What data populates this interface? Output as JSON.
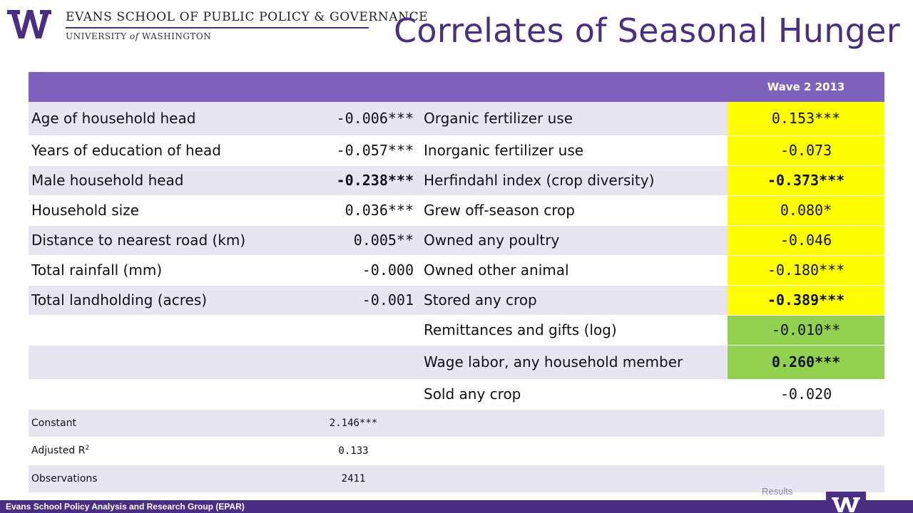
{
  "logo": {
    "line1": "EVANS SCHOOL OF PUBLIC POLICY & GOVERNANCE",
    "line2_a": "UNIVERSITY ",
    "line2_of": "of",
    "line2_b": " WASHINGTON"
  },
  "title": "Correlates of Seasonal Hunger",
  "table": {
    "header": {
      "wave": "Wave 2 2013"
    },
    "rows": [
      {
        "var1": "Age of household head",
        "val1": "-0.006***",
        "var2": "Organic fertilizer use",
        "val2": "0.153***"
      },
      {
        "var1": "Years of education of head",
        "val1": "-0.057***",
        "var2": "Inorganic fertilizer use",
        "val2": "-0.073"
      },
      {
        "var1": "Male household head",
        "val1": "-0.238***",
        "var2": "Herfindahl index (crop diversity)",
        "val2": "-0.373***"
      },
      {
        "var1": "Household size",
        "val1": "0.036***",
        "var2": "Grew off-season crop",
        "val2": "0.080*"
      },
      {
        "var1": "Distance to nearest road (km)",
        "val1": "0.005**",
        "var2": "Owned any poultry",
        "val2": "-0.046"
      },
      {
        "var1": "Total rainfall (mm)",
        "val1": "-0.000",
        "var2": "Owned other animal",
        "val2": "-0.180***"
      },
      {
        "var1": "Total landholding (acres)",
        "val1": "-0.001",
        "var2": "Stored any crop",
        "val2": "-0.389***"
      },
      {
        "var1": "",
        "val1": "",
        "var2": "Remittances and gifts (log)",
        "val2": "-0.010**"
      },
      {
        "var1": "",
        "val1": "",
        "var2": "Wage labor, any household member",
        "val2": "0.260***"
      },
      {
        "var1": "",
        "val1": "",
        "var2": "Sold any crop",
        "val2": "-0.020"
      }
    ],
    "stats": [
      {
        "label": "Constant",
        "value": "2.146***"
      },
      {
        "label": "Adjusted R",
        "sup": "2",
        "value": "0.133"
      },
      {
        "label": "Observations",
        "value": "2411"
      }
    ]
  },
  "footer": {
    "text": "Evans School Policy Analysis and Research Group (EPAR)",
    "results": "Results"
  },
  "colors": {
    "purple": "#4b2e83",
    "header_purple": "#7e62bd",
    "row_light": "#e8e4f1",
    "yellow": "#ffff00",
    "green": "#92d050"
  }
}
